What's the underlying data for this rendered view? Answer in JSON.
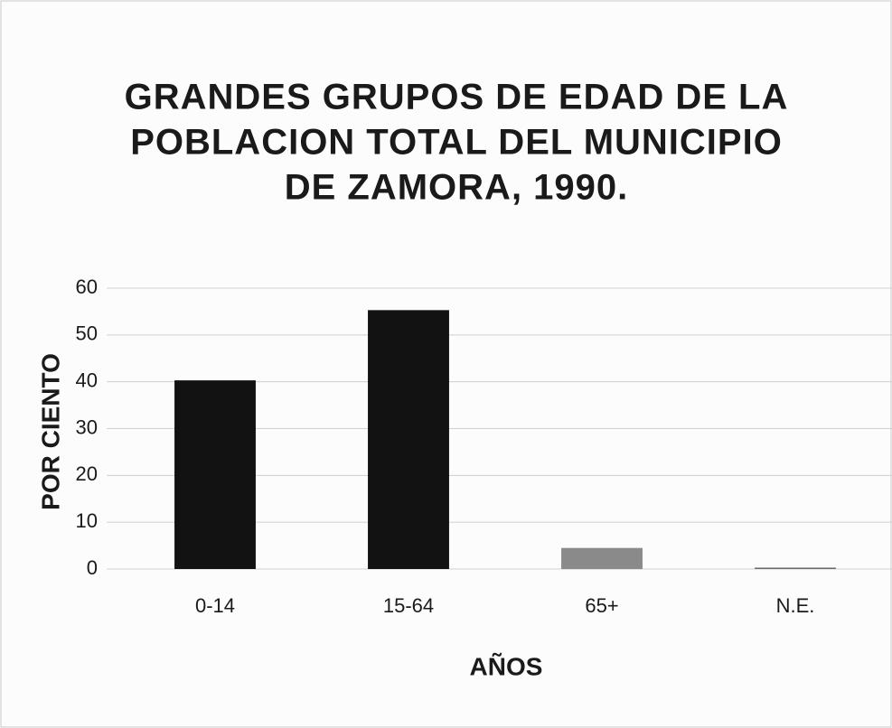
{
  "chart_data": {
    "type": "bar",
    "title": [
      "GRANDES GRUPOS DE EDAD DE LA",
      "POBLACION TOTAL DEL MUNICIPIO",
      "DE ZAMORA, 1990."
    ],
    "x_label": "AÑOS",
    "y_label": "POR CIENTO",
    "categories": [
      "0-14",
      "15-64",
      "65+",
      "N.E."
    ],
    "values": [
      40.3,
      55.3,
      4.5,
      0.3
    ],
    "colors": [
      "#121212",
      "#121212",
      "#8a8a8a",
      "#6a6a7a"
    ],
    "ylim": [
      0,
      60
    ],
    "yticks": [
      0,
      10,
      20,
      30,
      40,
      50,
      60
    ],
    "grid": true
  }
}
